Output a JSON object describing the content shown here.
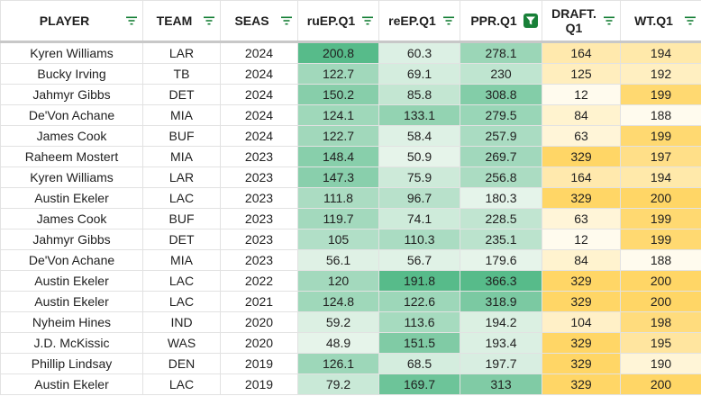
{
  "columns": [
    {
      "key": "player",
      "label": "PLAYER",
      "filter": "filter-icon",
      "filter_active": false
    },
    {
      "key": "team",
      "label": "TEAM",
      "filter": "filter-icon",
      "filter_active": false
    },
    {
      "key": "seas",
      "label": "SEAS",
      "filter": "filter-icon",
      "filter_active": false
    },
    {
      "key": "ruep",
      "label": "ruEP.Q1",
      "filter": "filter-icon",
      "filter_active": false
    },
    {
      "key": "reep",
      "label": "reEP.Q1",
      "filter": "filter-icon",
      "filter_active": false
    },
    {
      "key": "ppr",
      "label": "PPR.Q1",
      "filter": "filter-active-icon",
      "filter_active": true
    },
    {
      "key": "draft",
      "label": "DRAFT.\nQ1",
      "filter": "filter-icon",
      "filter_active": false
    },
    {
      "key": "wt",
      "label": "WT.Q1",
      "filter": "filter-icon",
      "filter_active": false
    }
  ],
  "rows": [
    {
      "player": "Kyren Williams",
      "team": "LAR",
      "seas": "2024",
      "ruep": "200.8",
      "reep": "60.3",
      "ppr": "278.1",
      "draft": "164",
      "wt": "194"
    },
    {
      "player": "Bucky Irving",
      "team": "TB",
      "seas": "2024",
      "ruep": "122.7",
      "reep": "69.1",
      "ppr": "230",
      "draft": "125",
      "wt": "192"
    },
    {
      "player": "Jahmyr Gibbs",
      "team": "DET",
      "seas": "2024",
      "ruep": "150.2",
      "reep": "85.8",
      "ppr": "308.8",
      "draft": "12",
      "wt": "199"
    },
    {
      "player": "De'Von Achane",
      "team": "MIA",
      "seas": "2024",
      "ruep": "124.1",
      "reep": "133.1",
      "ppr": "279.5",
      "draft": "84",
      "wt": "188"
    },
    {
      "player": "James Cook",
      "team": "BUF",
      "seas": "2024",
      "ruep": "122.7",
      "reep": "58.4",
      "ppr": "257.9",
      "draft": "63",
      "wt": "199"
    },
    {
      "player": "Raheem Mostert",
      "team": "MIA",
      "seas": "2023",
      "ruep": "148.4",
      "reep": "50.9",
      "ppr": "269.7",
      "draft": "329",
      "wt": "197"
    },
    {
      "player": "Kyren Williams",
      "team": "LAR",
      "seas": "2023",
      "ruep": "147.3",
      "reep": "75.9",
      "ppr": "256.8",
      "draft": "164",
      "wt": "194"
    },
    {
      "player": "Austin Ekeler",
      "team": "LAC",
      "seas": "2023",
      "ruep": "111.8",
      "reep": "96.7",
      "ppr": "180.3",
      "draft": "329",
      "wt": "200"
    },
    {
      "player": "James Cook",
      "team": "BUF",
      "seas": "2023",
      "ruep": "119.7",
      "reep": "74.1",
      "ppr": "228.5",
      "draft": "63",
      "wt": "199"
    },
    {
      "player": "Jahmyr Gibbs",
      "team": "DET",
      "seas": "2023",
      "ruep": "105",
      "reep": "110.3",
      "ppr": "235.1",
      "draft": "12",
      "wt": "199"
    },
    {
      "player": "De'Von Achane",
      "team": "MIA",
      "seas": "2023",
      "ruep": "56.1",
      "reep": "56.7",
      "ppr": "179.6",
      "draft": "84",
      "wt": "188"
    },
    {
      "player": "Austin Ekeler",
      "team": "LAC",
      "seas": "2022",
      "ruep": "120",
      "reep": "191.8",
      "ppr": "366.3",
      "draft": "329",
      "wt": "200"
    },
    {
      "player": "Austin Ekeler",
      "team": "LAC",
      "seas": "2021",
      "ruep": "124.8",
      "reep": "122.6",
      "ppr": "318.9",
      "draft": "329",
      "wt": "200"
    },
    {
      "player": "Nyheim Hines",
      "team": "IND",
      "seas": "2020",
      "ruep": "59.2",
      "reep": "113.6",
      "ppr": "194.2",
      "draft": "104",
      "wt": "198"
    },
    {
      "player": "J.D. McKissic",
      "team": "WAS",
      "seas": "2020",
      "ruep": "48.9",
      "reep": "151.5",
      "ppr": "193.4",
      "draft": "329",
      "wt": "195"
    },
    {
      "player": "Phillip Lindsay",
      "team": "DEN",
      "seas": "2019",
      "ruep": "126.1",
      "reep": "68.5",
      "ppr": "197.7",
      "draft": "329",
      "wt": "190"
    },
    {
      "player": "Austin Ekeler",
      "team": "LAC",
      "seas": "2019",
      "ruep": "79.2",
      "reep": "169.7",
      "ppr": "313",
      "draft": "329",
      "wt": "200"
    }
  ],
  "colors": {
    "filter_icon": "#188038",
    "filter_active_bg": "#188038",
    "green_low": "#e6f4ea",
    "green_high": "#57bb8a",
    "yellow_low": "#fffbee",
    "yellow_high": "#ffd666"
  }
}
